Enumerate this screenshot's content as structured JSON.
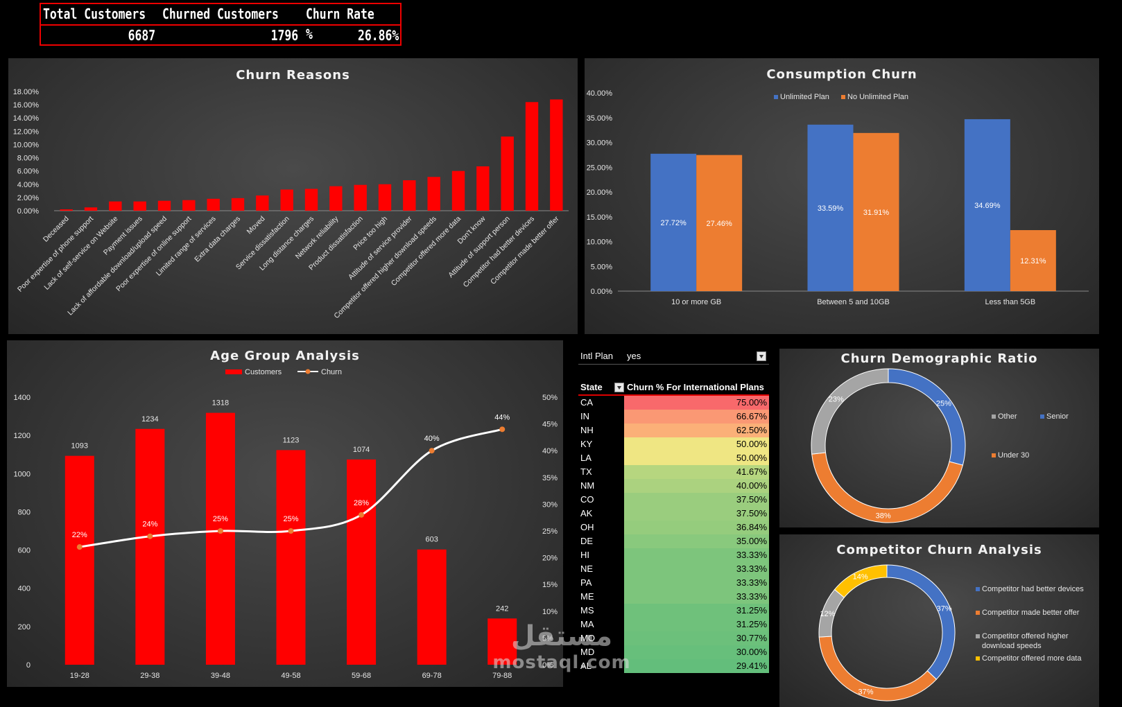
{
  "kpi": {
    "headers": [
      "Total Customers",
      "Churned Customers",
      "Churn Rate %"
    ],
    "values": [
      "6687",
      "1796",
      "26.86%"
    ]
  },
  "colors": {
    "red": "#ff0000",
    "blue": "#4472c4",
    "orange": "#ed7d31",
    "gray": "#a5a5a5",
    "yellow": "#ffc000"
  },
  "watermark": {
    "text": "mostaql.com",
    "arabic": "مستقل"
  },
  "chart_data": [
    {
      "id": "churn-reasons",
      "type": "bar",
      "title": "Churn Reasons",
      "ylim": [
        0,
        0.18
      ],
      "yticks": [
        "0.00%",
        "2.00%",
        "4.00%",
        "6.00%",
        "8.00%",
        "10.00%",
        "12.00%",
        "14.00%",
        "16.00%",
        "18.00%"
      ],
      "categories": [
        "Deceased",
        "Poor expertise of phone support",
        "Lack of self-service on Website",
        "Payment issues",
        "Lack of affordable download/upload speed",
        "Poor expertise of online support",
        "Limited range of services",
        "Extra data charges",
        "Moved",
        "Service dissatisfaction",
        "Long distance charges",
        "Network reliability",
        "Product dissatisfaction",
        "Price too high",
        "Attitude of service provider",
        "Competitor offered higher download speeds",
        "Competitor offered more data",
        "Don't know",
        "Attitude of support person",
        "Competitor had better devices",
        "Competitor made better offer"
      ],
      "values": [
        0.002,
        0.005,
        0.014,
        0.014,
        0.015,
        0.016,
        0.018,
        0.019,
        0.023,
        0.032,
        0.033,
        0.037,
        0.039,
        0.04,
        0.046,
        0.051,
        0.06,
        0.067,
        0.112,
        0.164,
        0.168
      ]
    },
    {
      "id": "consumption-churn",
      "type": "bar",
      "title": "Consumption Churn",
      "ylim": [
        0,
        0.4
      ],
      "yticks": [
        "0.00%",
        "5.00%",
        "10.00%",
        "15.00%",
        "20.00%",
        "25.00%",
        "30.00%",
        "35.00%",
        "40.00%"
      ],
      "categories": [
        "10 or more GB",
        "Between 5 and 10GB",
        "Less than 5GB"
      ],
      "series": [
        {
          "name": "Unlimited Plan",
          "values": [
            0.2772,
            0.3359,
            0.3469
          ],
          "labels": [
            "27.72%",
            "33.59%",
            "34.69%"
          ]
        },
        {
          "name": "No Unlimited Plan",
          "values": [
            0.2746,
            0.3191,
            0.1231
          ],
          "labels": [
            "27.46%",
            "31.91%",
            "12.31%"
          ]
        }
      ],
      "legend": "top"
    },
    {
      "id": "age-group",
      "type": "bar",
      "title": "Age Group Analysis",
      "categories": [
        "19-28",
        "29-38",
        "39-48",
        "49-58",
        "59-68",
        "69-78",
        "79-88"
      ],
      "ylim": [
        0,
        1400
      ],
      "yticks": [
        "0",
        "200",
        "400",
        "600",
        "800",
        "1000",
        "1200",
        "1400"
      ],
      "y2lim": [
        0,
        0.5
      ],
      "y2ticks": [
        "0%",
        "5%",
        "10%",
        "15%",
        "20%",
        "25%",
        "30%",
        "35%",
        "40%",
        "45%",
        "50%"
      ],
      "series": [
        {
          "name": "Customers",
          "type": "bar",
          "values": [
            1093,
            1234,
            1318,
            1123,
            1074,
            603,
            242
          ],
          "labels": [
            "1093",
            "1234",
            "1318",
            "1123",
            "1074",
            "603",
            "242"
          ]
        },
        {
          "name": "Churn",
          "type": "line",
          "values": [
            0.22,
            0.24,
            0.25,
            0.25,
            0.28,
            0.4,
            0.44
          ],
          "labels": [
            "22%",
            "24%",
            "25%",
            "25%",
            "28%",
            "40%",
            "44%"
          ]
        }
      ],
      "legend": "top"
    },
    {
      "id": "intl-plan-table",
      "type": "table",
      "filter_label": "Intl Plan",
      "filter_value": "yes",
      "columns": [
        "State",
        "Churn % For International Plans"
      ],
      "rows": [
        {
          "state": "CA",
          "pct": "75.00%",
          "value": 0.75
        },
        {
          "state": "IN",
          "pct": "66.67%",
          "value": 0.6667
        },
        {
          "state": "NH",
          "pct": "62.50%",
          "value": 0.625
        },
        {
          "state": "KY",
          "pct": "50.00%",
          "value": 0.5
        },
        {
          "state": "LA",
          "pct": "50.00%",
          "value": 0.5
        },
        {
          "state": "TX",
          "pct": "41.67%",
          "value": 0.4167
        },
        {
          "state": "NM",
          "pct": "40.00%",
          "value": 0.4
        },
        {
          "state": "CO",
          "pct": "37.50%",
          "value": 0.375
        },
        {
          "state": "AK",
          "pct": "37.50%",
          "value": 0.375
        },
        {
          "state": "OH",
          "pct": "36.84%",
          "value": 0.3684
        },
        {
          "state": "DE",
          "pct": "35.00%",
          "value": 0.35
        },
        {
          "state": "HI",
          "pct": "33.33%",
          "value": 0.3333
        },
        {
          "state": "NE",
          "pct": "33.33%",
          "value": 0.3333
        },
        {
          "state": "PA",
          "pct": "33.33%",
          "value": 0.3333
        },
        {
          "state": "ME",
          "pct": "33.33%",
          "value": 0.3333
        },
        {
          "state": "MS",
          "pct": "31.25%",
          "value": 0.3125
        },
        {
          "state": "MA",
          "pct": "31.25%",
          "value": 0.3125
        },
        {
          "state": "MO",
          "pct": "30.77%",
          "value": 0.3077
        },
        {
          "state": "MD",
          "pct": "30.00%",
          "value": 0.3
        },
        {
          "state": "AL",
          "pct": "29.41%",
          "value": 0.2941
        }
      ]
    },
    {
      "id": "demographic-ratio",
      "type": "pie",
      "title": "Churn Demographic Ratio",
      "slices": [
        {
          "name": "Senior",
          "value": 0.25,
          "label": "25%",
          "color": "#4472c4"
        },
        {
          "name": "Under 30",
          "value": 0.38,
          "label": "38%",
          "color": "#ed7d31"
        },
        {
          "name": "Other",
          "value": 0.23,
          "label": "23%",
          "color": "#a5a5a5"
        }
      ],
      "legend": [
        "Other",
        "Senior",
        "Under 30"
      ]
    },
    {
      "id": "competitor-churn",
      "type": "pie",
      "title": "Competitor Churn Analysis",
      "slices": [
        {
          "name": "Competitor had better devices",
          "value": 0.37,
          "label": "37%",
          "color": "#4472c4"
        },
        {
          "name": "Competitor made better offer",
          "value": 0.37,
          "label": "37%",
          "color": "#ed7d31"
        },
        {
          "name": "Competitor offered higher download speeds",
          "value": 0.12,
          "label": "12%",
          "color": "#a5a5a5"
        },
        {
          "name": "Competitor offered more data",
          "value": 0.14,
          "label": "14%",
          "color": "#ffc000"
        }
      ],
      "legend": "right"
    }
  ]
}
